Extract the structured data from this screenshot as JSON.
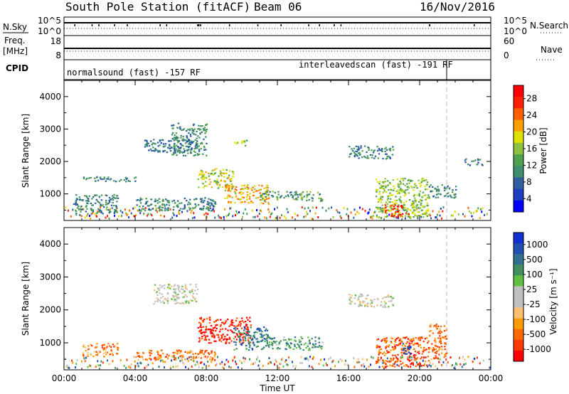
{
  "header": {
    "station": "South Pole Station (fitACF)",
    "beam": "Beam 06",
    "date": "16/Nov/2016"
  },
  "status_panel": {
    "nsky_label": "N.Sky",
    "nsky_ticks": [
      "10^5",
      "10^0"
    ],
    "nsearch_label": "N.Search",
    "nsearch_ticks": [
      "10^5",
      "10^0"
    ],
    "freq_label_1": "Freq.",
    "freq_label_2": "[MHz]",
    "freq_ticks": [
      "18",
      "8"
    ],
    "nave_label": "Nave",
    "nave_ticks": [
      "60",
      "0"
    ],
    "cpid_label": "CPID",
    "modes": [
      {
        "text": "normalsound (fast) -157 RF",
        "start_hour": 0.0,
        "end_hour": 21.3
      },
      {
        "text": "interleavedscan (fast) -191 RF",
        "start_hour": 21.3,
        "end_hour": 24.0
      }
    ]
  },
  "time_axis": {
    "label": "Time UT",
    "ticks": [
      "00:00",
      "04:00",
      "08:00",
      "12:00",
      "16:00",
      "20:00",
      "00:00"
    ],
    "range_hours": [
      0,
      24
    ]
  },
  "chart_data": [
    {
      "type": "heatmap",
      "name": "power",
      "ylabel": "Slant Range [km]",
      "ylim": [
        180,
        4500
      ],
      "yticks": [
        1000,
        2000,
        3000,
        4000
      ],
      "colorbar": {
        "label": "Power [dB]",
        "ticks": [
          "28",
          "24",
          "20",
          "16",
          "12",
          "8",
          "4"
        ],
        "colors": [
          "#0000ff",
          "#1f3fbf",
          "#2f5f9f",
          "#3f8f6f",
          "#4fa04f",
          "#8fc03f",
          "#dfdf00",
          "#ffa000",
          "#ff6000",
          "#ff2000",
          "#ff0000"
        ]
      },
      "regions": [
        {
          "hours": [
            6.0,
            8.0
          ],
          "range": [
            2200,
            3200
          ],
          "value": 0.3
        },
        {
          "hours": [
            4.5,
            7.5
          ],
          "range": [
            2300,
            2700
          ],
          "value": 0.25
        },
        {
          "hours": [
            9.5,
            10.3
          ],
          "range": [
            2500,
            2700
          ],
          "value": 0.5
        },
        {
          "hours": [
            1.0,
            4.0
          ],
          "range": [
            1400,
            1550
          ],
          "value": 0.3
        },
        {
          "hours": [
            7.5,
            9.5
          ],
          "range": [
            1200,
            1800
          ],
          "value": 0.55
        },
        {
          "hours": [
            9.0,
            11.5
          ],
          "range": [
            700,
            1300
          ],
          "value": 0.65
        },
        {
          "hours": [
            11.0,
            14.5
          ],
          "range": [
            800,
            1100
          ],
          "value": 0.35
        },
        {
          "hours": [
            4.0,
            8.5
          ],
          "range": [
            500,
            900
          ],
          "value": 0.3
        },
        {
          "hours": [
            0.5,
            3.0
          ],
          "range": [
            400,
            1000
          ],
          "value": 0.3
        },
        {
          "hours": [
            16.0,
            18.5
          ],
          "range": [
            2100,
            2500
          ],
          "value": 0.3
        },
        {
          "hours": [
            17.5,
            20.5
          ],
          "range": [
            300,
            1500
          ],
          "value": 0.5
        },
        {
          "hours": [
            18.0,
            19.0
          ],
          "range": [
            300,
            700
          ],
          "value": 0.95
        },
        {
          "hours": [
            20.5,
            22.0
          ],
          "range": [
            900,
            1300
          ],
          "value": 0.3
        },
        {
          "hours": [
            22.5,
            23.5
          ],
          "range": [
            1900,
            2100
          ],
          "value": 0.25
        }
      ]
    },
    {
      "type": "heatmap",
      "name": "velocity",
      "ylabel": "Slant Range [km]",
      "ylim": [
        180,
        4500
      ],
      "yticks": [
        1000,
        2000,
        3000,
        4000
      ],
      "colorbar": {
        "label": "Velocity [m s⁻¹]",
        "ticks": [
          "1000",
          "500",
          "100",
          "25",
          "-25",
          "-100",
          "-500",
          "-1000"
        ],
        "colors": [
          "#ff0000",
          "#ff3a00",
          "#ff6a00",
          "#ff9a00",
          "#ffc070",
          "#c0c0c0",
          "#c0c0c0",
          "#60c040",
          "#409060",
          "#307090",
          "#2050b0",
          "#1030d0"
        ]
      },
      "regions": [
        {
          "hours": [
            5.0,
            7.5
          ],
          "range": [
            2200,
            2800
          ],
          "value": 0.5
        },
        {
          "hours": [
            7.5,
            10.5
          ],
          "range": [
            1000,
            1800
          ],
          "value": 0.05
        },
        {
          "hours": [
            9.5,
            11.5
          ],
          "range": [
            800,
            1500
          ],
          "value": 0.8
        },
        {
          "hours": [
            4.0,
            8.5
          ],
          "range": [
            500,
            800
          ],
          "value": 0.2
        },
        {
          "hours": [
            11.5,
            14.5
          ],
          "range": [
            800,
            1200
          ],
          "value": 0.7
        },
        {
          "hours": [
            1.0,
            3.0
          ],
          "range": [
            600,
            1000
          ],
          "value": 0.25
        },
        {
          "hours": [
            16.0,
            18.5
          ],
          "range": [
            2100,
            2500
          ],
          "value": 0.5
        },
        {
          "hours": [
            17.5,
            20.5
          ],
          "range": [
            300,
            1200
          ],
          "value": 0.15
        },
        {
          "hours": [
            19.0,
            19.5
          ],
          "range": [
            600,
            1000
          ],
          "value": 0.95
        },
        {
          "hours": [
            20.5,
            21.5
          ],
          "range": [
            500,
            1600
          ],
          "value": 0.2
        }
      ]
    }
  ]
}
